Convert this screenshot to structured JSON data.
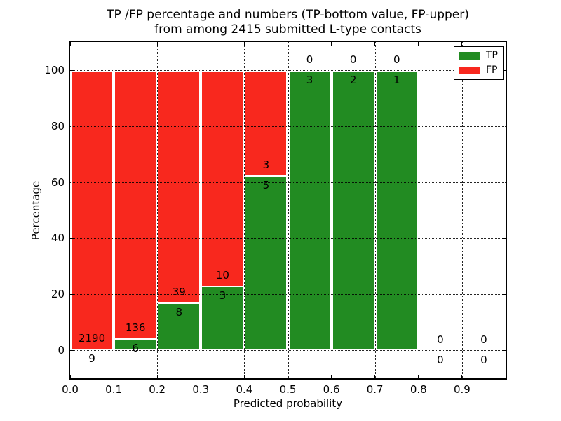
{
  "title": {
    "line1": "TP /FP percentage and numbers (TP-bottom value, FP-upper)",
    "line2": "from among 2415 submitted L-type contacts"
  },
  "x_axis": {
    "label": "Predicted probability",
    "ticks": [
      "0.0",
      "0.1",
      "0.2",
      "0.3",
      "0.4",
      "0.5",
      "0.6",
      "0.7",
      "0.8",
      "0.9"
    ]
  },
  "y_axis": {
    "label": "Percentage",
    "ticks": [
      "0",
      "20",
      "40",
      "60",
      "80",
      "100"
    ]
  },
  "legend": {
    "items": [
      {
        "label": "TP",
        "color": "#228b22"
      },
      {
        "label": "FP",
        "color": "#f8281e"
      }
    ]
  },
  "chart_data": {
    "type": "bar",
    "stacked": true,
    "normalized": "percent",
    "title": "TP /FP percentage and numbers (TP-bottom value, FP-upper) from among 2415 submitted L-type contacts",
    "xlabel": "Predicted probability",
    "ylabel": "Percentage",
    "xlim": [
      0.0,
      1.0
    ],
    "ylim": [
      -10,
      110
    ],
    "grid": "dotted-black",
    "legend_position": "upper right",
    "bin_width": 0.1,
    "bin_starts": [
      0.0,
      0.1,
      0.2,
      0.3,
      0.4,
      0.5,
      0.6,
      0.7,
      0.8,
      0.9
    ],
    "series": [
      {
        "name": "TP",
        "color": "#228b22",
        "counts": [
          9,
          6,
          8,
          3,
          5,
          3,
          2,
          1,
          0,
          0
        ]
      },
      {
        "name": "FP",
        "color": "#f8281e",
        "counts": [
          2190,
          136,
          39,
          10,
          3,
          0,
          0,
          0,
          0,
          0
        ]
      }
    ],
    "total_submitted_shown_in_title": 2415
  }
}
